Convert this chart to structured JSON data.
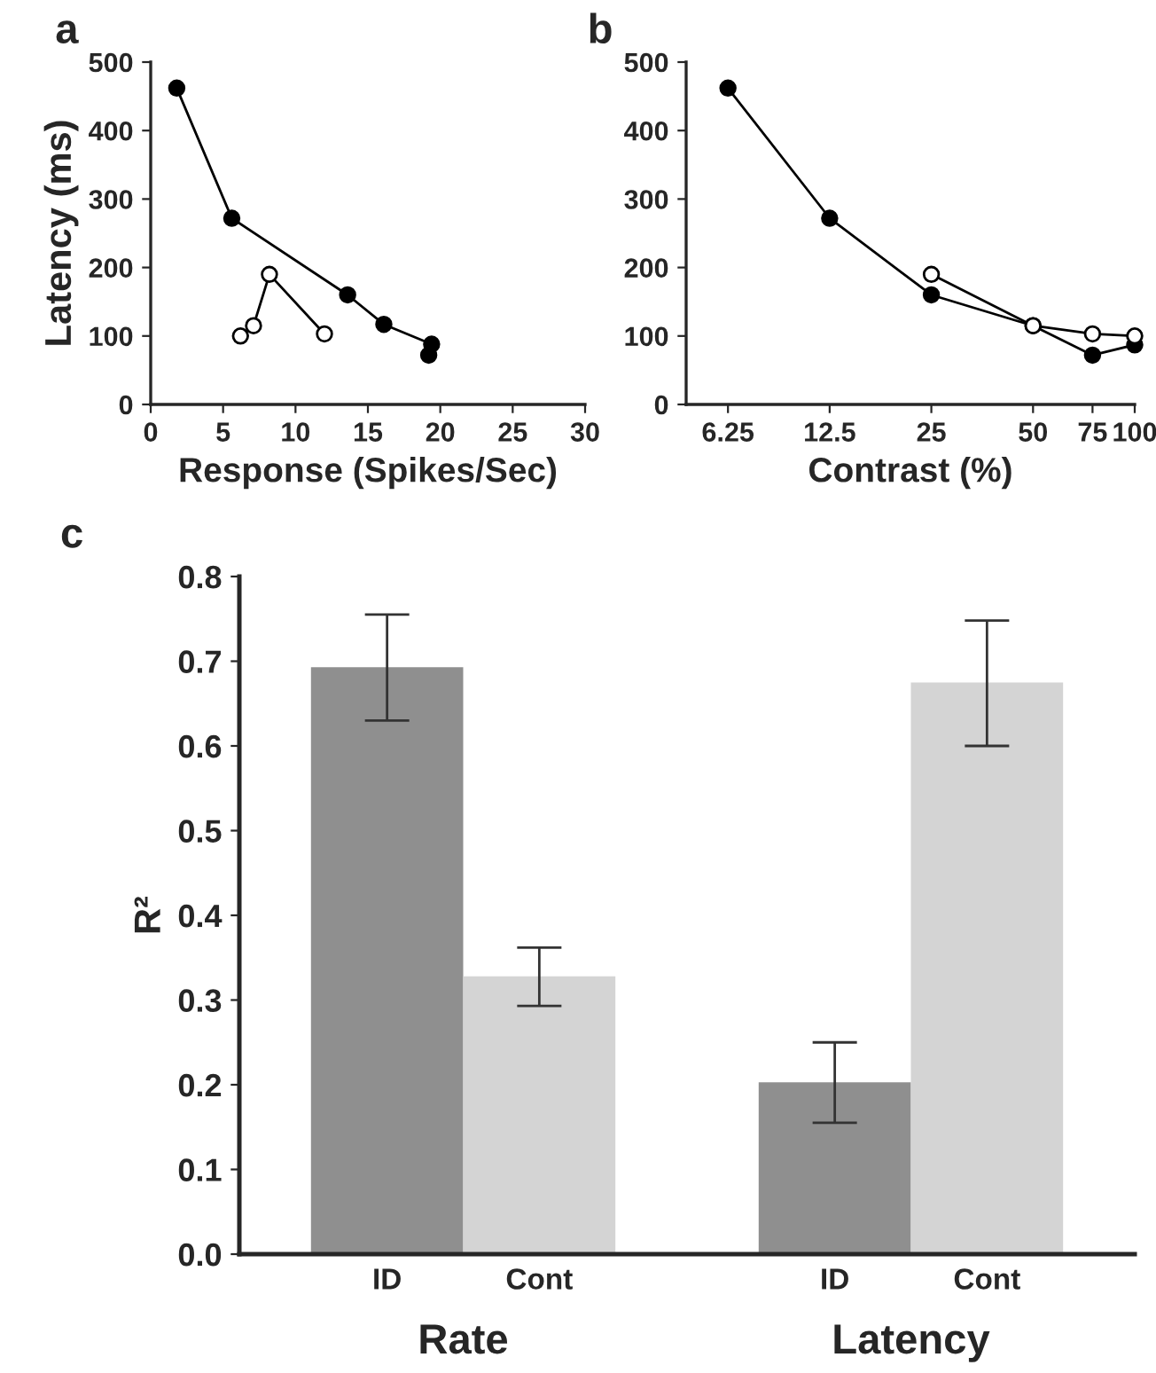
{
  "chart_data": [
    {
      "type": "line",
      "title": "a",
      "xlabel": "Response (Spikes/Sec)",
      "ylabel": "Latency (ms)",
      "xlim": [
        0,
        30
      ],
      "xticks": [
        0,
        5,
        10,
        15,
        20,
        25,
        30
      ],
      "ylim": [
        0,
        500
      ],
      "yticks": [
        0,
        100,
        200,
        300,
        400,
        500
      ],
      "grid": false,
      "legend": false,
      "marker": "circle",
      "line_style": "solid",
      "series": [
        {
          "color": "#000000",
          "x": [
            1.8,
            5.6,
            13.6,
            16.1,
            19.4,
            19.2
          ],
          "values": [
            462,
            272,
            160,
            117,
            88,
            72
          ]
        },
        {
          "color": "#000000",
          "x": [
            6.2,
            7.1,
            8.2,
            12.0
          ],
          "values": [
            100,
            115,
            190,
            103
          ]
        }
      ]
    },
    {
      "type": "line",
      "title": "b",
      "xlabel": "Contrast (%)",
      "log": "x",
      "xlim": [
        4.7,
        100
      ],
      "xticks": [
        6.25,
        12.5,
        25,
        50,
        75,
        100
      ],
      "ylim": [
        0,
        500
      ],
      "yticks": [
        0,
        100,
        200,
        300,
        400,
        500
      ],
      "grid": false,
      "legend": false,
      "marker": "circle",
      "line_style": "solid",
      "series": [
        {
          "color": "#000000",
          "x": [
            6.25,
            12.5,
            25,
            50,
            75,
            100
          ],
          "values": [
            462,
            272,
            160,
            115,
            72,
            87
          ]
        },
        {
          "color": "#000000",
          "x": [
            25,
            50,
            75,
            100
          ],
          "values": [
            190,
            115,
            103,
            100
          ]
        }
      ]
    },
    {
      "type": "bar",
      "title": "c",
      "ylabel": "R²",
      "categories": [
        "Rate",
        "Latency"
      ],
      "ylim": [
        0,
        0.8
      ],
      "yticks": [
        {
          "value": 0,
          "label": "0.0"
        },
        0.1,
        0.2,
        0.3,
        0.4,
        0.5,
        0.6,
        0.7,
        0.8
      ],
      "grid": false,
      "legend": false,
      "series": [
        {
          "name": "ID",
          "color": "#8f8f8f",
          "values": [
            0.693,
            0.203
          ],
          "errors": [
            [
              0.63,
              0.755
            ],
            [
              0.155,
              0.25
            ]
          ]
        },
        {
          "name": "Cont",
          "color": "#d4d4d4",
          "values": [
            0.328,
            0.675
          ],
          "errors": [
            [
              0.293,
              0.362
            ],
            [
              0.6,
              0.748
            ]
          ]
        }
      ]
    }
  ]
}
